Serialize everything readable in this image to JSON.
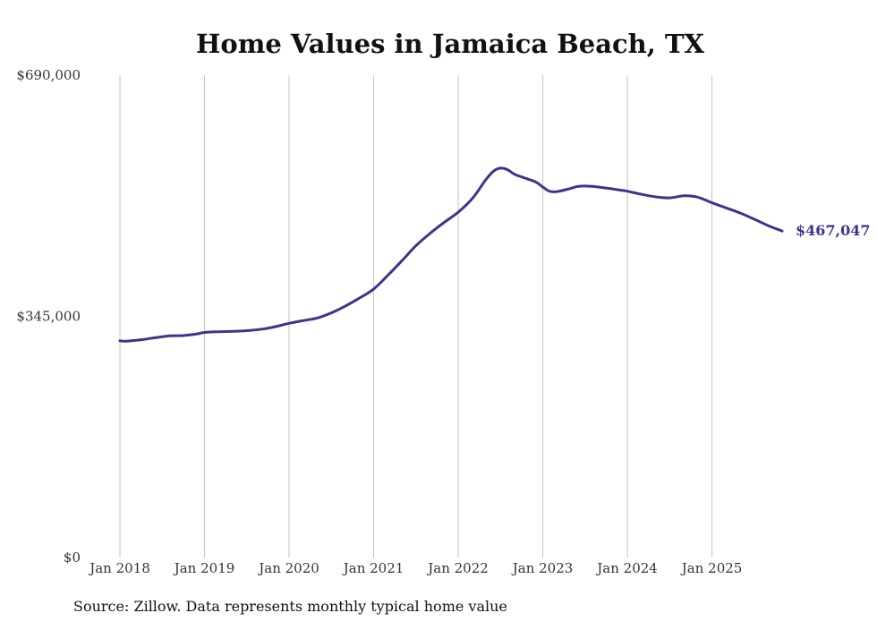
{
  "chart_data": {
    "type": "line",
    "title": "Home Values in Jamaica Beach, TX",
    "xlabel": "",
    "ylabel": "",
    "ylim": [
      0,
      690000
    ],
    "y_ticks": [
      {
        "value": 0,
        "label": "$0"
      },
      {
        "value": 345000,
        "label": "$345,000"
      },
      {
        "value": 690000,
        "label": "$690,000"
      }
    ],
    "x_ticks": [
      {
        "value": 2018,
        "label": "Jan 2018"
      },
      {
        "value": 2019,
        "label": "Jan 2019"
      },
      {
        "value": 2020,
        "label": "Jan 2020"
      },
      {
        "value": 2021,
        "label": "Jan 2021"
      },
      {
        "value": 2022,
        "label": "Jan 2022"
      },
      {
        "value": 2023,
        "label": "Jan 2023"
      },
      {
        "value": 2024,
        "label": "Jan 2024"
      },
      {
        "value": 2025,
        "label": "Jan 2025"
      }
    ],
    "xlim": [
      2018,
      2025.83
    ],
    "grid": "vertical",
    "series": [
      {
        "name": "Typical home value",
        "color": "#3d348b",
        "x": [
          2018.0,
          2018.08,
          2018.25,
          2018.42,
          2018.58,
          2018.75,
          2018.92,
          2019.0,
          2019.17,
          2019.33,
          2019.5,
          2019.67,
          2019.83,
          2020.0,
          2020.17,
          2020.33,
          2020.5,
          2020.67,
          2020.83,
          2021.0,
          2021.17,
          2021.33,
          2021.5,
          2021.67,
          2021.83,
          2022.0,
          2022.17,
          2022.33,
          2022.42,
          2022.5,
          2022.58,
          2022.67,
          2022.83,
          2022.92,
          2023.0,
          2023.08,
          2023.17,
          2023.33,
          2023.42,
          2023.58,
          2023.75,
          2023.92,
          2024.0,
          2024.17,
          2024.33,
          2024.5,
          2024.67,
          2024.83,
          2025.0,
          2025.17,
          2025.33,
          2025.5,
          2025.67,
          2025.83
        ],
        "values": [
          310000,
          309500,
          311500,
          314500,
          317000,
          317500,
          320000,
          322000,
          323000,
          323500,
          324500,
          326500,
          330000,
          335000,
          339000,
          342500,
          350000,
          360000,
          371000,
          384000,
          404000,
          424000,
          446000,
          464000,
          479000,
          494000,
          514000,
          541000,
          553000,
          557000,
          555000,
          548000,
          541000,
          537000,
          530000,
          524000,
          523500,
          528000,
          531000,
          531000,
          528500,
          525500,
          524000,
          519500,
          516000,
          514500,
          517500,
          515500,
          507500,
          500000,
          493000,
          484000,
          474500,
          467047
        ]
      }
    ],
    "end_label": "$467,047"
  },
  "source_note": "Source: Zillow. Data represents monthly typical home value"
}
